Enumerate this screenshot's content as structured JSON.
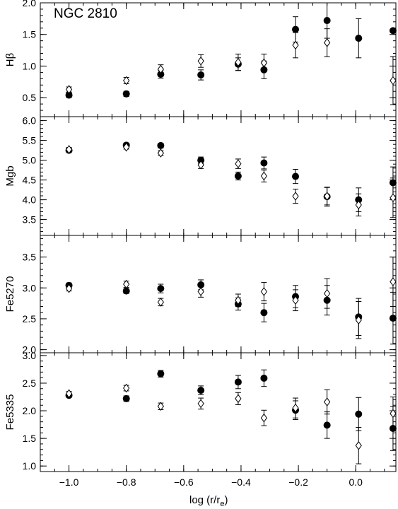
{
  "chart_data": {
    "type": "scatter",
    "title": "NGC 2810",
    "xlabel": "log (r/r_e)",
    "xlabel_main": "log (r/r",
    "xlabel_sub": "e",
    "xlabel_close": ")",
    "xlim": [
      -1.1,
      0.14
    ],
    "xticks": [
      -1.0,
      -0.8,
      -0.6,
      -0.4,
      -0.2,
      0.0
    ],
    "xtick_labels": [
      "−1.0",
      "−0.8",
      "−0.6",
      "−0.4",
      "−0.2",
      "0.0"
    ],
    "x": [
      -1.0,
      -0.8,
      -0.68,
      -0.54,
      -0.41,
      -0.32,
      -0.21,
      -0.1,
      0.01,
      0.13
    ],
    "panels": [
      {
        "ylabel": "Hβ",
        "ylim": [
          0.2,
          2.0
        ],
        "yticks": [
          0.5,
          1.0,
          1.5,
          2.0
        ],
        "ytick_labels": [
          "0.5",
          "1.0",
          "1.5",
          "2.0"
        ],
        "series": [
          {
            "marker": "filled-circle",
            "values": [
              0.54,
              0.56,
              0.87,
              0.86,
              1.03,
              0.94,
              1.58,
              1.72,
              1.44,
              1.56
            ],
            "errors": [
              0.04,
              0.04,
              0.06,
              0.08,
              0.1,
              0.14,
              0.2,
              0.28,
              0.31,
              0.0
            ]
          },
          {
            "marker": "open-diamond",
            "values": [
              0.63,
              0.77,
              0.95,
              1.08,
              1.06,
              1.05,
              1.33,
              1.37,
              null,
              0.77
            ],
            "errors": [
              0.04,
              0.05,
              0.07,
              0.1,
              0.13,
              0.14,
              0.2,
              0.22,
              null,
              0.38
            ]
          }
        ]
      },
      {
        "ylabel": "Mgb",
        "ylim": [
          3.1,
          6.1
        ],
        "yticks": [
          3.5,
          4.0,
          4.5,
          5.0,
          5.5,
          6.0
        ],
        "ytick_labels": [
          "3.5",
          "4.0",
          "4.5",
          "5.0",
          "5.5",
          "6.0"
        ],
        "series": [
          {
            "marker": "filled-circle",
            "values": [
              5.25,
              5.38,
              5.37,
              5.0,
              4.6,
              4.93,
              4.59,
              4.08,
              4.0,
              4.43
            ],
            "errors": [
              0.05,
              0.05,
              0.06,
              0.08,
              0.1,
              0.15,
              0.18,
              0.24,
              0.3,
              0.4
            ]
          },
          {
            "marker": "open-diamond",
            "values": [
              5.27,
              5.33,
              5.18,
              4.88,
              4.91,
              4.6,
              4.09,
              4.09,
              3.87,
              4.05
            ],
            "errors": [
              0.05,
              0.05,
              0.06,
              0.09,
              0.12,
              0.15,
              0.18,
              0.22,
              0.28,
              0.5
            ]
          }
        ]
      },
      {
        "ylabel": "Fe5270",
        "ylim": [
          1.95,
          3.85
        ],
        "yticks": [
          2.0,
          2.5,
          3.0,
          3.5
        ],
        "ytick_labels": [
          "2.0",
          "2.5",
          "3.0",
          "3.5"
        ],
        "series": [
          {
            "marker": "filled-circle",
            "values": [
              3.04,
              2.95,
              2.99,
              3.05,
              2.74,
              2.6,
              2.86,
              2.8,
              2.53,
              2.51
            ],
            "errors": [
              0.04,
              0.04,
              0.07,
              0.08,
              0.1,
              0.15,
              0.18,
              0.24,
              0.3,
              0.42
            ]
          },
          {
            "marker": "open-diamond",
            "values": [
              2.99,
              3.06,
              2.77,
              2.94,
              2.8,
              2.94,
              2.8,
              2.91,
              2.48,
              3.1
            ],
            "errors": [
              0.04,
              0.05,
              0.06,
              0.09,
              0.1,
              0.15,
              0.17,
              0.24,
              0.3,
              0.4
            ]
          }
        ]
      },
      {
        "ylabel": "Fe5335",
        "ylim": [
          0.9,
          3.05
        ],
        "yticks": [
          1.0,
          1.5,
          2.0,
          2.5,
          3.0
        ],
        "ytick_labels": [
          "1.0",
          "1.5",
          "2.0",
          "2.5",
          "3.0"
        ],
        "series": [
          {
            "marker": "filled-circle",
            "values": [
              2.28,
              2.22,
              2.67,
              2.37,
              2.52,
              2.59,
              2.01,
              1.74,
              1.94,
              1.68
            ],
            "errors": [
              0.04,
              0.05,
              0.06,
              0.08,
              0.12,
              0.15,
              0.17,
              0.24,
              0.3,
              0.4
            ]
          },
          {
            "marker": "open-diamond",
            "values": [
              2.31,
              2.41,
              2.08,
              2.13,
              2.22,
              1.87,
              2.05,
              2.16,
              1.37,
              1.95
            ],
            "errors": [
              0.04,
              0.05,
              0.06,
              0.1,
              0.11,
              0.14,
              0.18,
              0.22,
              0.33,
              0.3
            ]
          }
        ]
      }
    ]
  }
}
